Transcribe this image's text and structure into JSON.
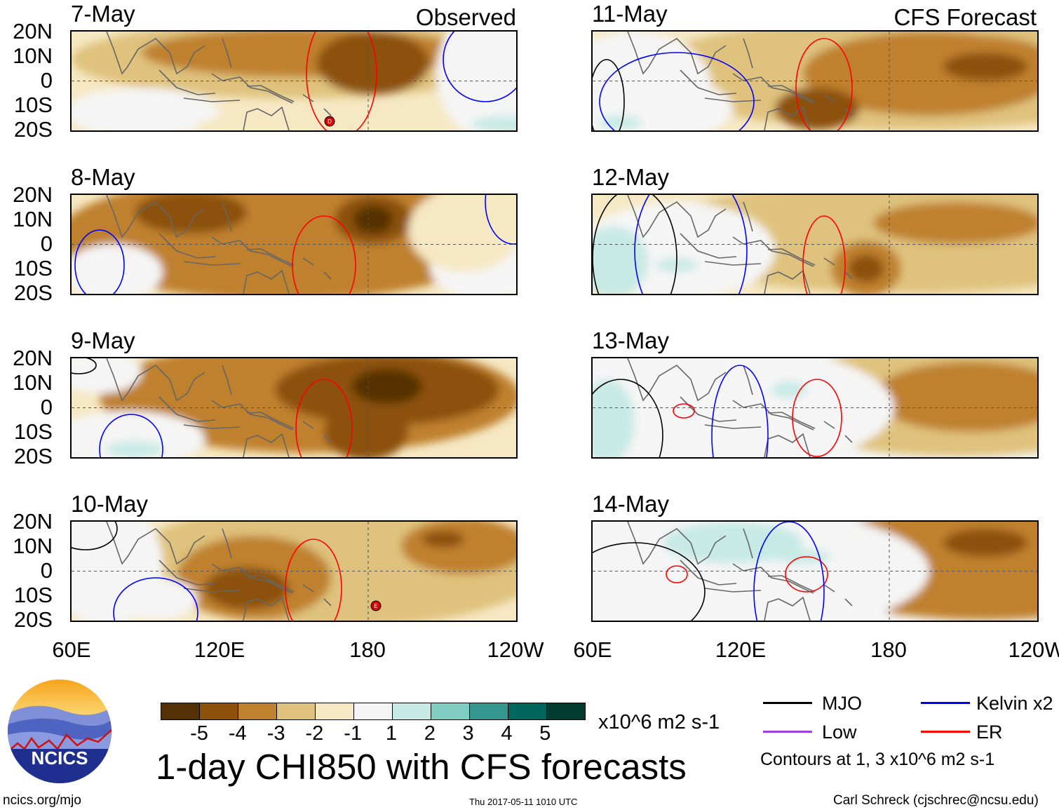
{
  "left_header": "Observed",
  "right_header": "CFS Forecast",
  "panels": [
    {
      "date": "7-May"
    },
    {
      "date": "8-May"
    },
    {
      "date": "9-May"
    },
    {
      "date": "10-May"
    },
    {
      "date": "11-May"
    },
    {
      "date": "12-May"
    },
    {
      "date": "13-May"
    },
    {
      "date": "14-May"
    }
  ],
  "lat_labels": [
    "20N",
    "10N",
    "0",
    "10S",
    "20S"
  ],
  "lon_labels": [
    "60E",
    "120E",
    "180",
    "120W"
  ],
  "storm_markers": [
    "D",
    "E"
  ],
  "colorbar": {
    "colors": [
      "#543005",
      "#8c510a",
      "#bf812d",
      "#dfc27d",
      "#f6e8c3",
      "#f5f5f5",
      "#c7eae5",
      "#80cdc1",
      "#35978f",
      "#01665e",
      "#003c30"
    ],
    "labels": [
      "-5",
      "-4",
      "-3",
      "-2",
      "-1",
      "1",
      "2",
      "3",
      "4",
      "5"
    ],
    "units": "x10^6 m2 s-1"
  },
  "title": "1-day CHI850 with CFS forecasts",
  "legend": {
    "items": [
      {
        "label": "MJO",
        "color": "#000000"
      },
      {
        "label": "Kelvin x2",
        "color": "#0000ff"
      },
      {
        "label": "Low",
        "color": "#a040e0"
      },
      {
        "label": "ER",
        "color": "#ff0000"
      }
    ],
    "note": "Contours at 1, 3 x10^6 m2 s-1"
  },
  "logo_text": "NCICS",
  "footer": {
    "url": "ncics.org/mjo",
    "timestamp": "Thu 2017-05-11 1010 UTC",
    "credit": "Carl Schreck (cjschrec@ncsu.edu)"
  }
}
